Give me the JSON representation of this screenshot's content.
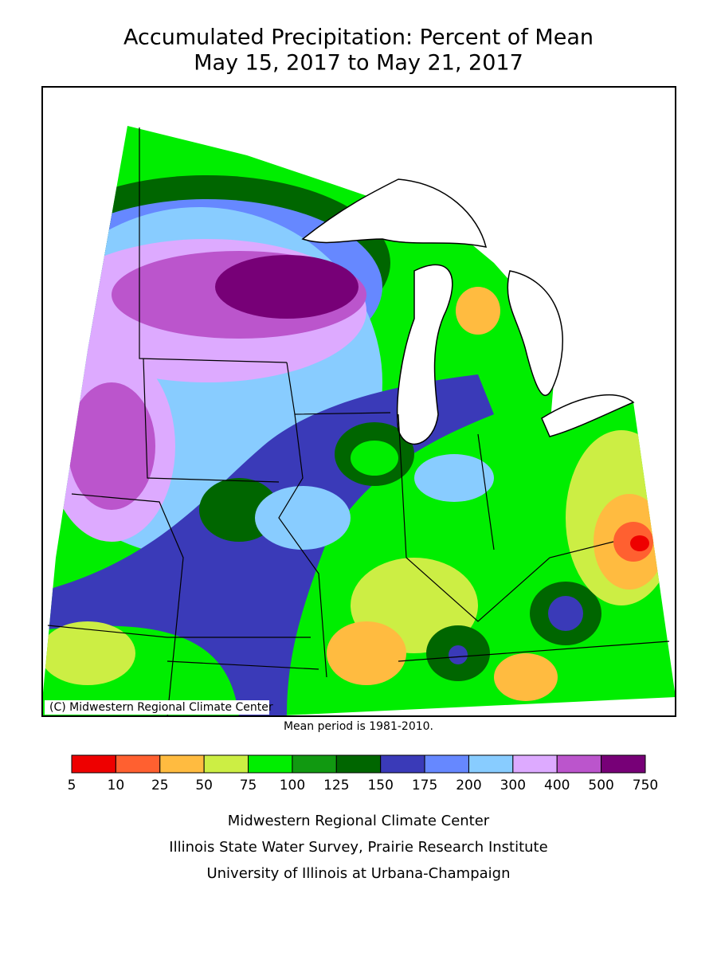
{
  "header": {
    "title": "Accumulated Precipitation: Percent of Mean",
    "subtitle": "May 15, 2017 to May 21, 2017"
  },
  "map": {
    "credit": "(C) Midwestern Regional Climate Center",
    "note": "Mean period is 1981-2010."
  },
  "legend": {
    "ticks": [
      5,
      10,
      25,
      50,
      75,
      100,
      125,
      150,
      175,
      200,
      300,
      400,
      500,
      750
    ],
    "colors": [
      "#ee0000",
      "#ff6030",
      "#ffbb40",
      "#ccee44",
      "#00ee00",
      "#119911",
      "#006600",
      "#3a3ab8",
      "#6688ff",
      "#88ccff",
      "#ddaaff",
      "#bb55cc",
      "#770077"
    ]
  },
  "footer": {
    "lines": [
      "Midwestern Regional Climate Center",
      "Illinois State Water Survey, Prairie Research Institute",
      "University of Illinois at Urbana-Champaign"
    ]
  }
}
